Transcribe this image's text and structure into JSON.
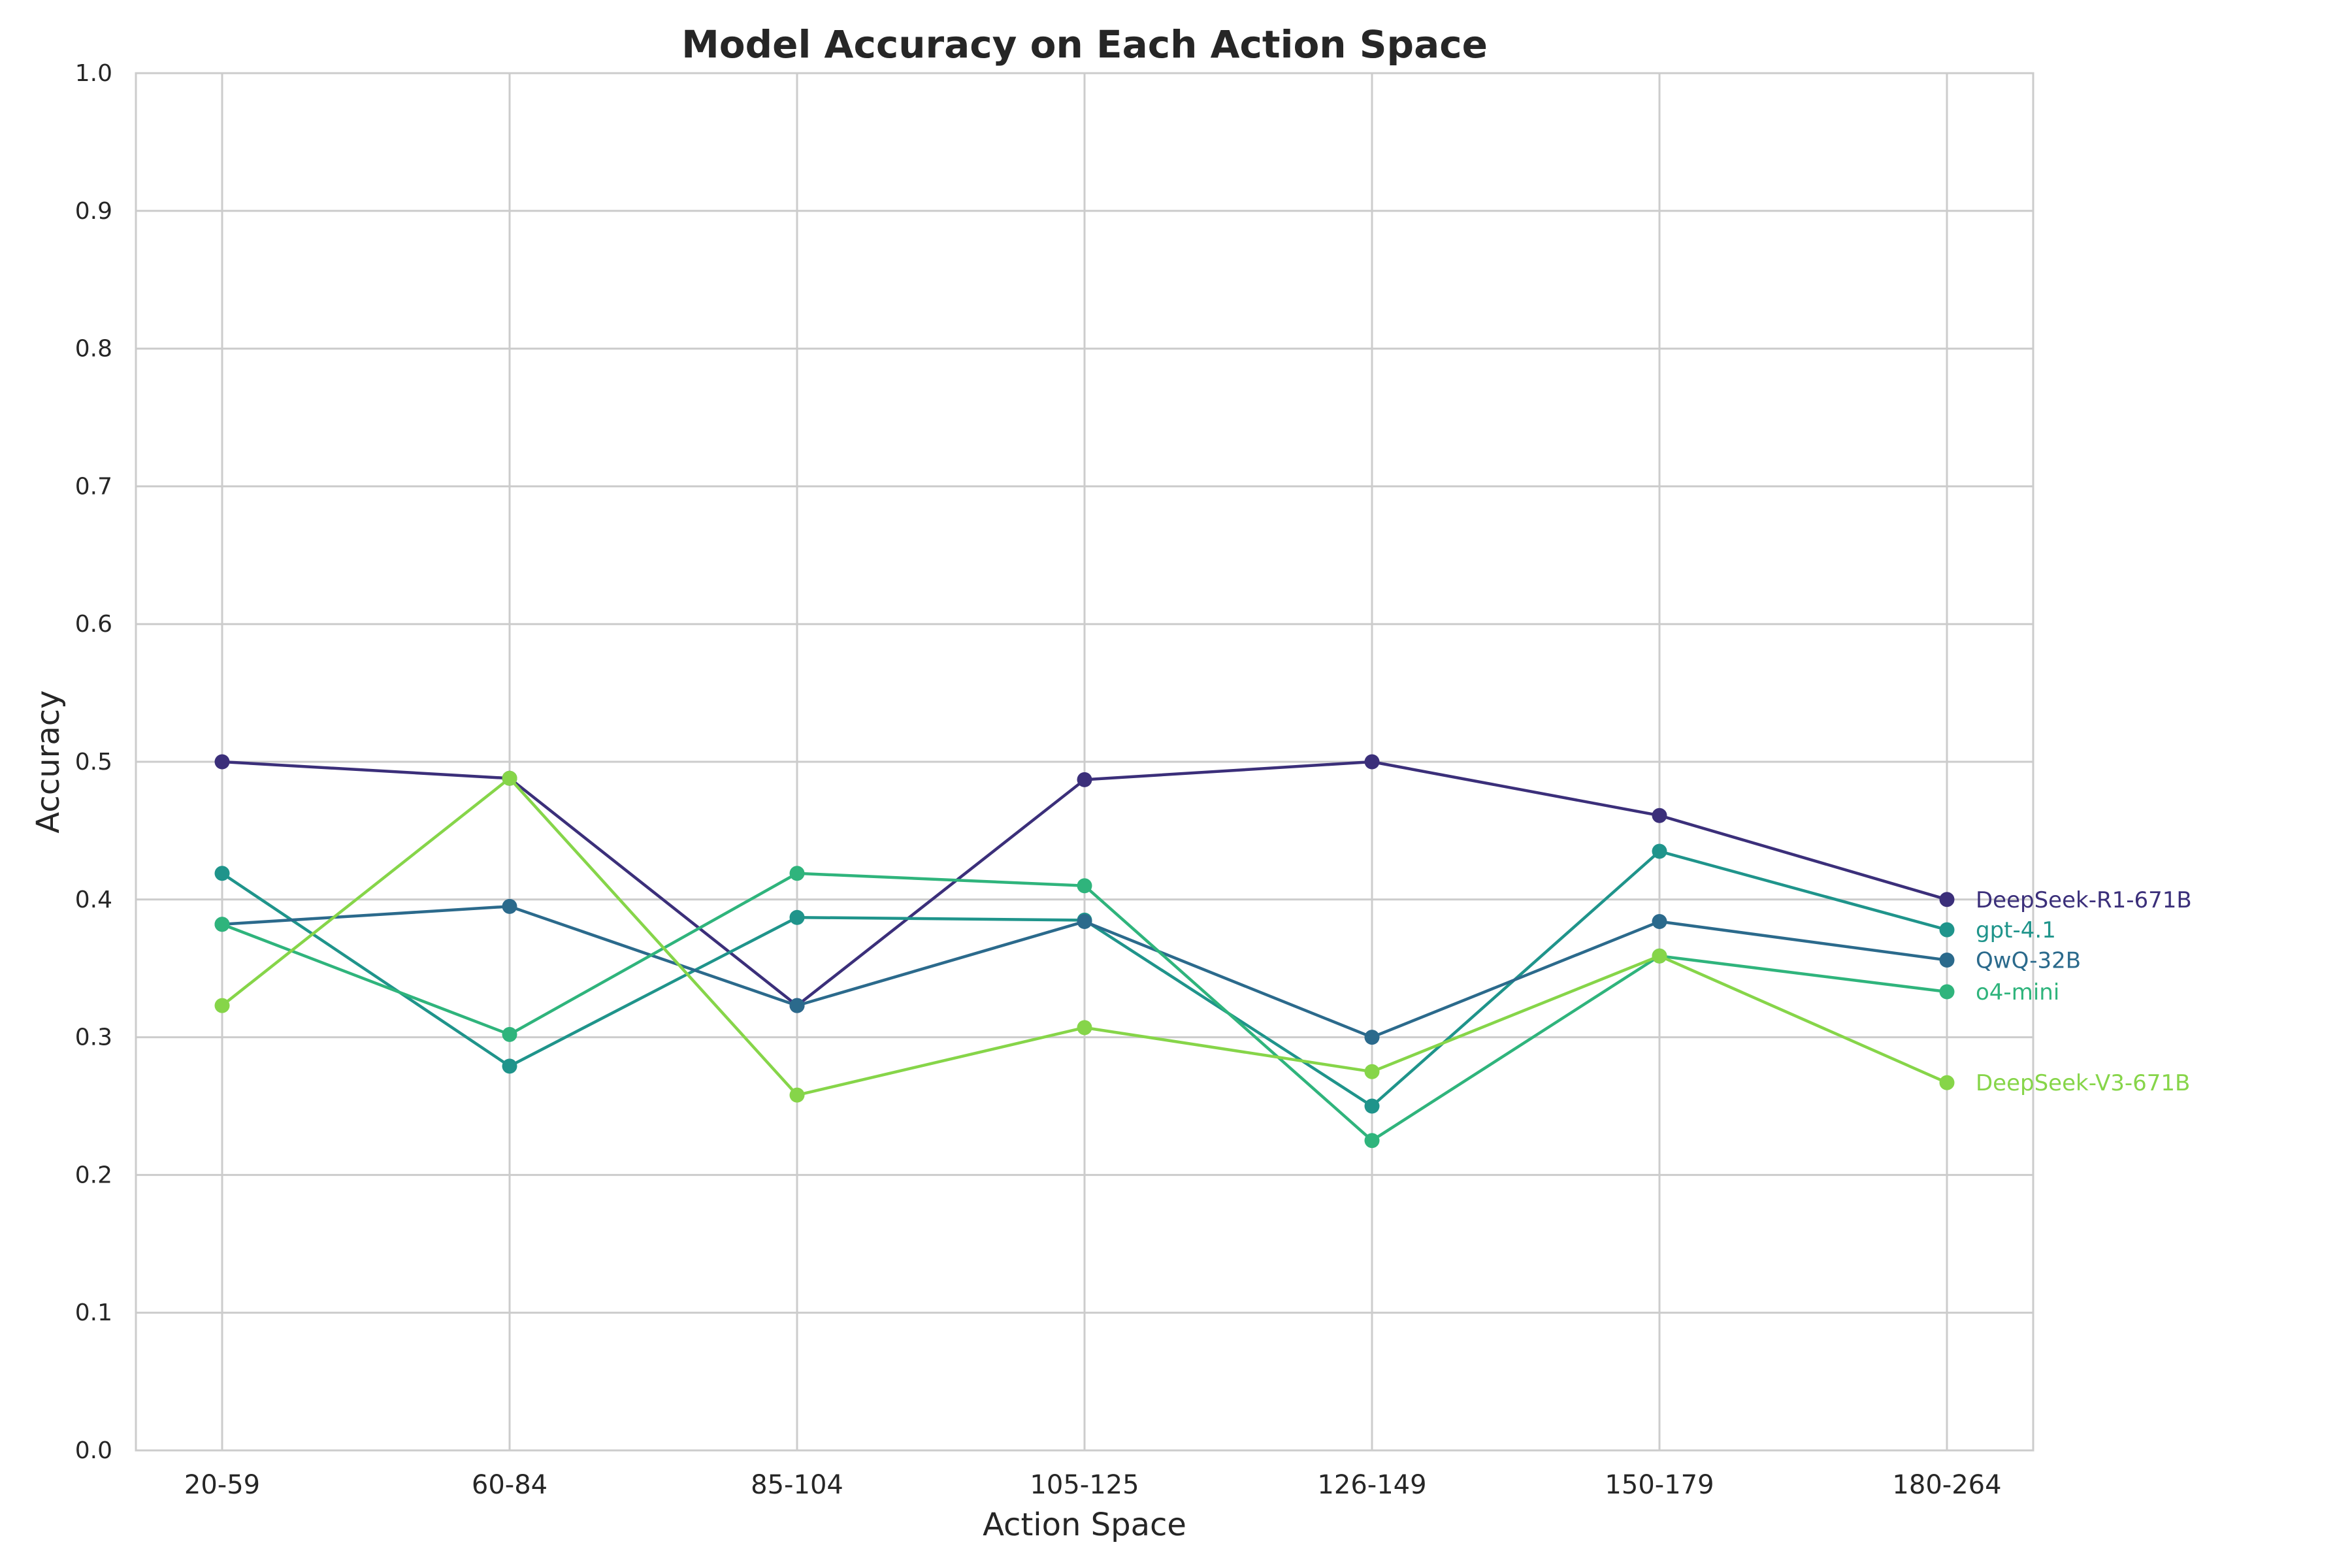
{
  "chart_data": {
    "type": "line",
    "title": "Model Accuracy on Each Action Space",
    "xlabel": "Action Space",
    "ylabel": "Accuracy",
    "categories": [
      "20-59",
      "60-84",
      "85-104",
      "105-125",
      "126-149",
      "150-179",
      "180-264"
    ],
    "ylim": [
      0,
      1.0
    ],
    "yticks": [
      "0.0",
      "0.1",
      "0.2",
      "0.3",
      "0.4",
      "0.5",
      "0.6",
      "0.7",
      "0.8",
      "0.9",
      "1.0"
    ],
    "grid": true,
    "legend": "labels at line ends (right)",
    "series": [
      {
        "name": "DeepSeek-R1-671B",
        "color": "#3b2f7a",
        "values": [
          0.5,
          0.488,
          0.323,
          0.487,
          0.5,
          0.461,
          0.4
        ]
      },
      {
        "name": "gpt-4.1",
        "color": "#1f948b",
        "values": [
          0.419,
          0.279,
          0.387,
          0.385,
          0.25,
          0.435,
          0.378
        ]
      },
      {
        "name": "QwQ-32B",
        "color": "#2b6a8c",
        "values": [
          0.382,
          0.395,
          0.323,
          0.384,
          0.3,
          0.384,
          0.356
        ]
      },
      {
        "name": "o4-mini",
        "color": "#2fb47c",
        "values": [
          0.382,
          0.302,
          0.419,
          0.41,
          0.225,
          0.359,
          0.333
        ]
      },
      {
        "name": "DeepSeek-V3-671B",
        "color": "#86d549",
        "values": [
          0.323,
          0.488,
          0.258,
          0.307,
          0.275,
          0.359,
          0.267
        ]
      }
    ]
  }
}
